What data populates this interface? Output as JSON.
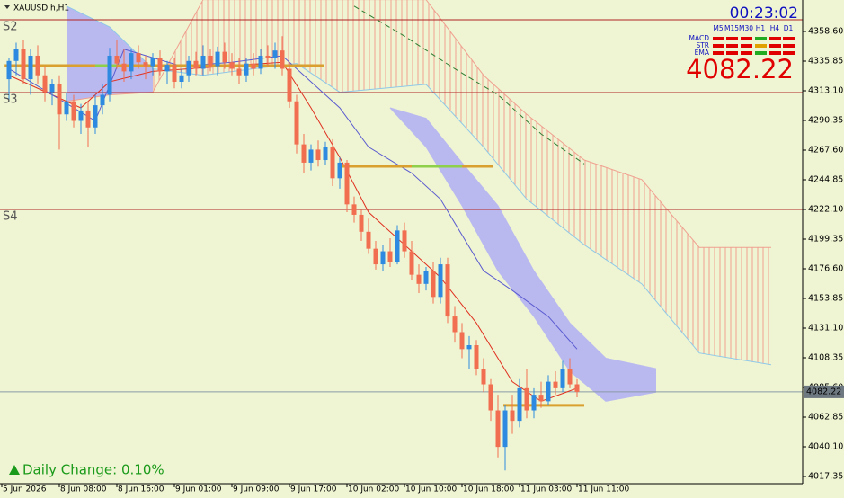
{
  "chart_data": {
    "type": "candlestick",
    "title": "XAUUSD.h,H1",
    "up_color": "#2d8ae0",
    "down_color": "#f26e50",
    "xlim": [
      -1,
      110.375
    ],
    "ylim": [
      4011.83,
      4382.73
    ],
    "xticks": [
      {
        "value": -1,
        "label": "5 Jun 2026"
      },
      {
        "value": 7,
        "label": "8 Jun 08:00"
      },
      {
        "value": 15,
        "label": "8 Jun 16:00"
      },
      {
        "value": 23,
        "label": "9 Jun 01:00"
      },
      {
        "value": 31,
        "label": "9 Jun 09:00"
      },
      {
        "value": 39,
        "label": "9 Jun 17:00"
      },
      {
        "value": 47,
        "label": "10 Jun 02:00"
      },
      {
        "value": 55,
        "label": "10 Jun 10:00"
      },
      {
        "value": 63,
        "label": "10 Jun 18:00"
      },
      {
        "value": 71,
        "label": "11 Jun 03:00"
      },
      {
        "value": 79,
        "label": "11 Jun 11:00"
      }
    ],
    "yticks": [
      {
        "value": 4358.6,
        "label": "4358.60"
      },
      4335.85,
      {
        "value": 4313.1,
        "label": "4313.10"
      },
      4290.35,
      {
        "value": 4267.6,
        "label": "4267.60"
      },
      4244.85,
      {
        "value": 4222.1,
        "label": "4222.10"
      },
      4199.35,
      {
        "value": 4176.6,
        "label": "4176.60"
      },
      4153.85,
      {
        "value": 4131.1,
        "label": "4131.10"
      },
      4108.35,
      {
        "value": 4085.6,
        "label": "4085.60"
      },
      4062.85,
      {
        "value": 4040.1,
        "label": "4040.10"
      },
      4017.35
    ],
    "ohlc": [
      [
        4322,
        4338,
        4305,
        4336
      ],
      [
        4336,
        4350,
        4325,
        4345
      ],
      [
        4345,
        4352,
        4318,
        4322
      ],
      [
        4322,
        4345,
        4310,
        4340
      ],
      [
        4340,
        4348,
        4318,
        4325
      ],
      [
        4325,
        4332,
        4305,
        4312
      ],
      [
        4312,
        4322,
        4302,
        4318
      ],
      [
        4318,
        4325,
        4268,
        4295
      ],
      [
        4295,
        4312,
        4290,
        4305
      ],
      [
        4305,
        4310,
        4285,
        4290
      ],
      [
        4290,
        4303,
        4280,
        4298
      ],
      [
        4298,
        4305,
        4270,
        4285
      ],
      [
        4285,
        4310,
        4280,
        4302
      ],
      [
        4302,
        4318,
        4295,
        4310
      ],
      [
        4310,
        4346,
        4305,
        4340
      ],
      [
        4340,
        4352,
        4330,
        4334
      ],
      [
        4334,
        4345,
        4320,
        4328
      ],
      [
        4328,
        4345,
        4322,
        4342
      ],
      [
        4342,
        4348,
        4330,
        4335
      ],
      [
        4335,
        4340,
        4322,
        4332
      ],
      [
        4332,
        4342,
        4325,
        4338
      ],
      [
        4338,
        4344,
        4325,
        4328
      ],
      [
        4328,
        4336,
        4318,
        4333
      ],
      [
        4333,
        4338,
        4315,
        4320
      ],
      [
        4320,
        4330,
        4315,
        4325
      ],
      [
        4325,
        4340,
        4320,
        4336
      ],
      [
        4336,
        4343,
        4325,
        4330
      ],
      [
        4330,
        4348,
        4325,
        4340
      ],
      [
        4340,
        4345,
        4328,
        4332
      ],
      [
        4332,
        4347,
        4325,
        4343
      ],
      [
        4343,
        4350,
        4330,
        4335
      ],
      [
        4335,
        4342,
        4325,
        4330
      ],
      [
        4330,
        4338,
        4318,
        4325
      ],
      [
        4325,
        4338,
        4320,
        4334
      ],
      [
        4334,
        4342,
        4325,
        4330
      ],
      [
        4330,
        4345,
        4326,
        4340
      ],
      [
        4340,
        4348,
        4332,
        4338
      ],
      [
        4338,
        4350,
        4330,
        4344
      ],
      [
        4344,
        4355,
        4325,
        4330
      ],
      [
        4330,
        4335,
        4300,
        4305
      ],
      [
        4305,
        4310,
        4265,
        4272
      ],
      [
        4272,
        4280,
        4250,
        4258
      ],
      [
        4258,
        4272,
        4252,
        4268
      ],
      [
        4268,
        4275,
        4255,
        4260
      ],
      [
        4260,
        4274,
        4256,
        4270
      ],
      [
        4270,
        4276,
        4240,
        4246
      ],
      [
        4246,
        4262,
        4238,
        4258
      ],
      [
        4258,
        4260,
        4220,
        4226
      ],
      [
        4226,
        4232,
        4212,
        4218
      ],
      [
        4218,
        4222,
        4198,
        4205
      ],
      [
        4205,
        4215,
        4188,
        4192
      ],
      [
        4192,
        4198,
        4176,
        4180
      ],
      [
        4180,
        4195,
        4175,
        4190
      ],
      [
        4190,
        4200,
        4178,
        4182
      ],
      [
        4182,
        4210,
        4180,
        4206
      ],
      [
        4206,
        4212,
        4185,
        4190
      ],
      [
        4190,
        4198,
        4168,
        4172
      ],
      [
        4172,
        4180,
        4158,
        4165
      ],
      [
        4165,
        4178,
        4160,
        4175
      ],
      [
        4175,
        4182,
        4150,
        4155
      ],
      [
        4155,
        4185,
        4150,
        4180
      ],
      [
        4180,
        4185,
        4135,
        4140
      ],
      [
        4140,
        4148,
        4120,
        4128
      ],
      [
        4128,
        4135,
        4108,
        4115
      ],
      [
        4115,
        4125,
        4100,
        4118
      ],
      [
        4118,
        4122,
        4095,
        4100
      ],
      [
        4100,
        4108,
        4082,
        4088
      ],
      [
        4088,
        4092,
        4060,
        4068
      ],
      [
        4068,
        4080,
        4032,
        4040
      ],
      [
        4040,
        4072,
        4022,
        4068
      ],
      [
        4068,
        4080,
        4050,
        4060
      ],
      [
        4060,
        4092,
        4055,
        4085
      ],
      [
        4085,
        4100,
        4062,
        4068
      ],
      [
        4068,
        4085,
        4062,
        4080
      ],
      [
        4080,
        4090,
        4070,
        4075
      ],
      [
        4075,
        4095,
        4072,
        4090
      ],
      [
        4090,
        4098,
        4080,
        4085
      ],
      [
        4085,
        4106,
        4082,
        4100
      ],
      [
        4100,
        4108,
        4085,
        4088
      ],
      [
        4088,
        4092,
        4078,
        4082.22
      ]
    ],
    "clouds": [
      {
        "x": [
          8,
          14,
          20,
          27,
          34,
          40,
          46,
          52,
          58,
          66,
          72,
          80,
          88,
          96,
          106
        ],
        "span_a": [
          4378,
          4362,
          4330,
          4325,
          4330,
          4334,
          4312,
          4315,
          4318,
          4270,
          4230,
          4195,
          4165,
          4112,
          4103
        ],
        "span_b": [
          4305,
          4310,
          4312,
          4383,
          4383,
          4383,
          4383,
          4383,
          4383,
          4325,
          4295,
          4260,
          4245,
          4193,
          4193
        ],
        "a_color": "#8fc8e8",
        "b_color": "#f0a090",
        "bull_fill": "#b9b9f0"
      },
      {
        "x": [
          53,
          58,
          63,
          68,
          73,
          78,
          83,
          90
        ],
        "span_a": [
          4300,
          4292,
          4258,
          4225,
          4175,
          4135,
          4108,
          4100
        ],
        "span_b": [
          4300,
          4270,
          4225,
          4175,
          4140,
          4098,
          4075,
          4082
        ],
        "a_color": "#b9b9f0",
        "b_color": "#b9b9f0",
        "bull_fill": "#b9b9f0"
      }
    ],
    "lines": [
      {
        "x": [
          0,
          10,
          14,
          20,
          30,
          38,
          42,
          46,
          50,
          55,
          60,
          65,
          70,
          74,
          79
        ],
        "values": [
          4325,
          4300,
          4320,
          4328,
          4332,
          4335,
          4300,
          4262,
          4220,
          4195,
          4170,
          4135,
          4090,
          4075,
          4085
        ],
        "color": "#e03020",
        "dash": false
      },
      {
        "x": [
          0,
          12,
          16,
          24,
          31,
          38,
          46,
          50,
          56,
          60,
          66,
          70,
          75,
          79
        ],
        "values": [
          4330,
          4290,
          4345,
          4332,
          4335,
          4340,
          4300,
          4270,
          4250,
          4230,
          4175,
          4160,
          4140,
          4115
        ],
        "color": "#5a5ad0",
        "dash": false
      },
      {
        "x": [
          48,
          55,
          62,
          68,
          74,
          80
        ],
        "values": [
          4378,
          4355,
          4330,
          4310,
          4280,
          4257
        ],
        "color": "#2e7d32",
        "dash": true
      }
    ],
    "levels": [
      {
        "name": "S2",
        "value": 4367.6
      },
      {
        "name": "S3",
        "value": 4311.7
      },
      {
        "name": "S4",
        "value": 4222.1
      }
    ],
    "level_color": "#b22222",
    "segments": [
      {
        "x": [
          -0.6,
          43.75
        ],
        "value": 4332.4,
        "highlight": [
          12,
          15
        ]
      },
      {
        "x": [
          46,
          67.25
        ],
        "value": 4255.2,
        "highlight": [
          56,
          63
        ]
      },
      {
        "x": [
          68.75,
          80
        ],
        "value": 4071.9,
        "highlight": null
      }
    ],
    "segment_color": "#d9a030",
    "highlight_color": "#8ed04a",
    "current_price": 4082.22
  },
  "panel": {
    "timer": "00:23:02",
    "timeframes": [
      "M5",
      "M15",
      "M30",
      "H1",
      "H4",
      "D1"
    ],
    "rows": [
      {
        "name": "MACD",
        "colors": [
          "#e00000",
          "#e00000",
          "#e00000",
          "#22aa22",
          "#e00000",
          "#e00000"
        ]
      },
      {
        "name": "STR",
        "colors": [
          "#e00000",
          "#e00000",
          "#e00000",
          "#e0a000",
          "#e00000",
          "#e00000"
        ]
      },
      {
        "name": "EMA",
        "colors": [
          "#e00000",
          "#e00000",
          "#e00000",
          "#22aa22",
          "#e00000",
          "#e00000"
        ]
      }
    ],
    "daily_change": "Daily Change: 0.10%"
  }
}
